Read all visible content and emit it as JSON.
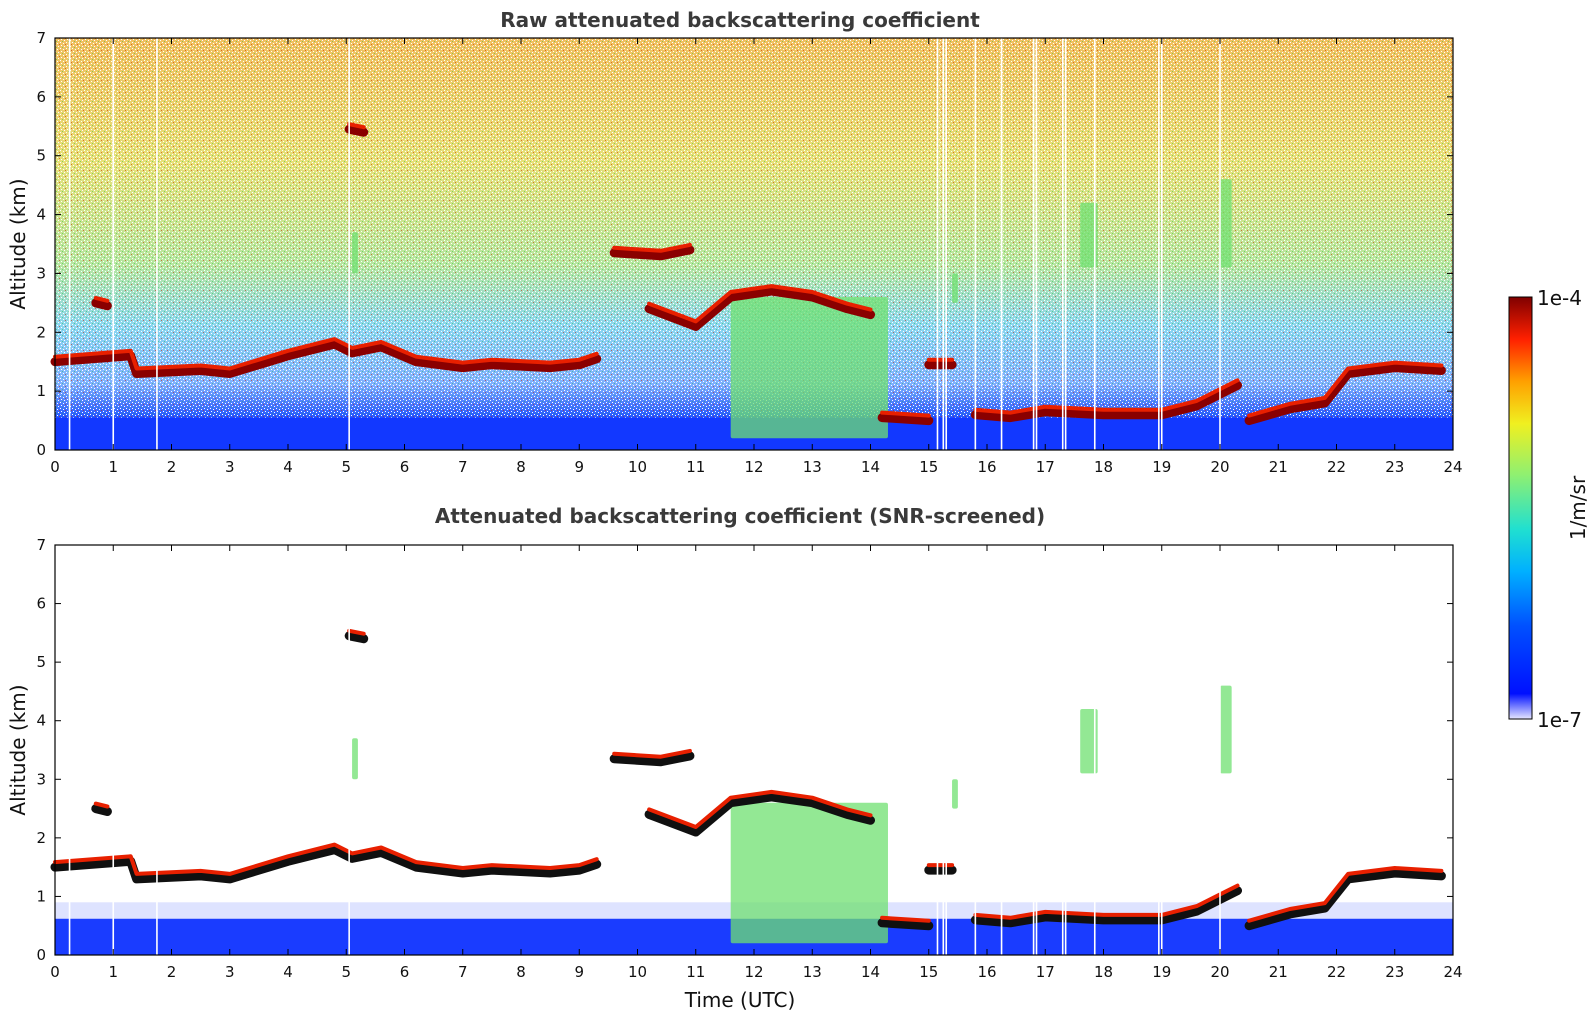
{
  "chart_data": [
    {
      "type": "heatmap",
      "title": "Raw attenuated backscattering coefficient",
      "xlabel": "",
      "ylabel": "Altitude (km)",
      "xlim": [
        0,
        24
      ],
      "ylim": [
        0,
        7
      ],
      "x_ticks": [
        "0",
        "1",
        "2",
        "3",
        "4",
        "5",
        "6",
        "7",
        "8",
        "9",
        "10",
        "11",
        "12",
        "13",
        "14",
        "15",
        "16",
        "17",
        "18",
        "19",
        "20",
        "21",
        "22",
        "23",
        "24"
      ],
      "y_ticks": [
        "0",
        "1",
        "2",
        "3",
        "4",
        "5",
        "6",
        "7"
      ],
      "screened": false,
      "cloud_layers": [
        {
          "t": [
            0.0,
            1.3,
            1.4,
            2.5,
            3.0,
            4.0,
            4.8,
            5.1,
            5.6,
            6.2,
            7.0,
            7.5,
            8.5,
            9.0,
            9.3
          ],
          "z": [
            1.5,
            1.6,
            1.3,
            1.35,
            1.3,
            1.6,
            1.8,
            1.65,
            1.75,
            1.5,
            1.4,
            1.45,
            1.4,
            1.45,
            1.55
          ]
        },
        {
          "t": [
            15.0,
            15.4
          ],
          "z": [
            1.45,
            1.45
          ]
        },
        {
          "t": [
            14.2,
            15.0
          ],
          "z": [
            0.55,
            0.5
          ]
        },
        {
          "t": [
            15.8,
            16.4,
            17.0,
            18.0,
            19.0,
            19.6,
            20.3
          ],
          "z": [
            0.6,
            0.55,
            0.65,
            0.6,
            0.6,
            0.75,
            1.1
          ]
        },
        {
          "t": [
            20.5,
            21.2,
            21.8,
            22.2,
            23.0,
            23.8
          ],
          "z": [
            0.5,
            0.7,
            0.8,
            1.3,
            1.4,
            1.35
          ]
        },
        {
          "t": [
            9.6,
            10.4,
            10.9
          ],
          "z": [
            3.35,
            3.3,
            3.4
          ]
        },
        {
          "t": [
            10.2,
            11.0,
            11.6,
            12.3,
            13.0,
            13.6,
            14.0
          ],
          "z": [
            2.4,
            2.1,
            2.6,
            2.7,
            2.6,
            2.4,
            2.3
          ]
        },
        {
          "t": [
            0.7,
            0.9
          ],
          "z": [
            2.5,
            2.45
          ]
        },
        {
          "t": [
            5.05,
            5.3
          ],
          "z": [
            5.45,
            5.4
          ]
        }
      ],
      "aerosol_plumes": [
        {
          "t": [
            11.6,
            14.3
          ],
          "z": [
            0.2,
            2.6
          ]
        },
        {
          "t": [
            17.6,
            17.9
          ],
          "z": [
            3.1,
            4.2
          ]
        },
        {
          "t": [
            20.0,
            20.2
          ],
          "z": [
            3.1,
            4.6
          ]
        },
        {
          "t": [
            15.4,
            15.5
          ],
          "z": [
            2.5,
            3.0
          ]
        },
        {
          "t": [
            5.1,
            5.2
          ],
          "z": [
            3.0,
            3.7
          ]
        }
      ],
      "data_gaps": [
        0.25,
        1.0,
        1.75,
        5.05,
        15.15,
        15.25,
        15.3,
        15.8,
        16.25,
        16.8,
        16.85,
        17.3,
        17.35,
        17.85,
        18.95,
        19.0,
        20.0
      ]
    },
    {
      "type": "heatmap",
      "title": "Attenuated backscattering coefficient (SNR-screened)",
      "xlabel": "Time (UTC)",
      "ylabel": "Altitude (km)",
      "xlim": [
        0,
        24
      ],
      "ylim": [
        0,
        7
      ],
      "x_ticks": [
        "0",
        "1",
        "2",
        "3",
        "4",
        "5",
        "6",
        "7",
        "8",
        "9",
        "10",
        "11",
        "12",
        "13",
        "14",
        "15",
        "16",
        "17",
        "18",
        "19",
        "20",
        "21",
        "22",
        "23",
        "24"
      ],
      "y_ticks": [
        "0",
        "1",
        "2",
        "3",
        "4",
        "5",
        "6",
        "7"
      ],
      "screened": true
    }
  ],
  "colorbar": {
    "max_label": "1e-4",
    "min_label": "1e-7",
    "unit": "1/m/sr",
    "scale": "log",
    "colormap": "jet"
  }
}
